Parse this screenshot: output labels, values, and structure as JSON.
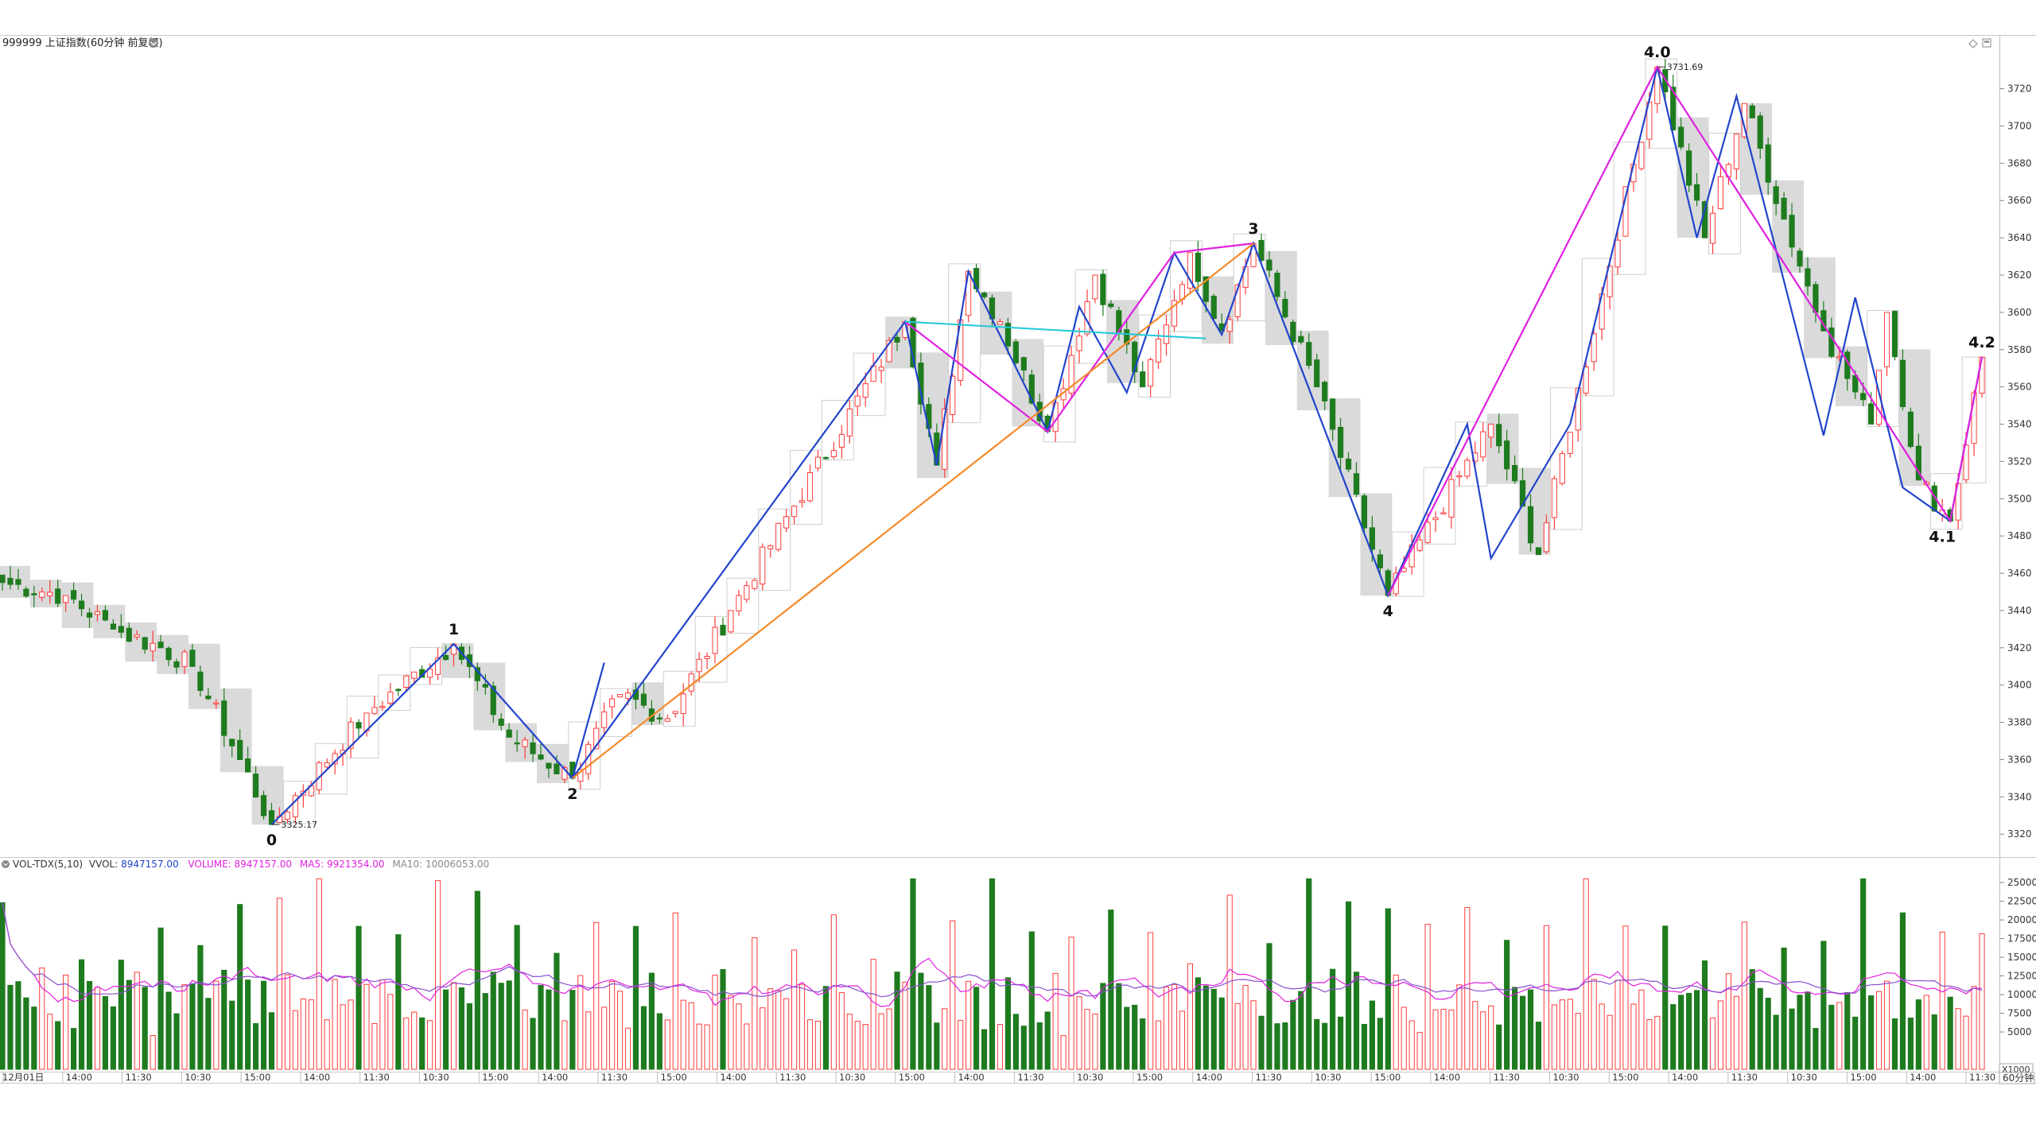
{
  "header": {
    "title": "999999 上证指数(60分钟 前复权)",
    "title_icon": "circle-menu-icon",
    "corner_icons": [
      "diamond-icon",
      "square-icon"
    ]
  },
  "colors": {
    "up": "#ff3b3b",
    "down": "#1e7b1e",
    "blue_wave": "#2244cc",
    "magenta_wave": "#e020e0",
    "orange_line": "#f58a2a",
    "cyan_line": "#20c8d8",
    "gray_box": "#d4d4d4"
  },
  "chart_data": [
    {
      "type": "candlestick",
      "ylim": [
        3312,
        3742
      ],
      "y_ticks": [
        3320,
        3340,
        3360,
        3380,
        3400,
        3420,
        3440,
        3460,
        3480,
        3500,
        3520,
        3540,
        3560,
        3580,
        3600,
        3620,
        3640,
        3660,
        3680,
        3700,
        3720
      ],
      "x_tick_labels": [
        "12月01日",
        "14:00",
        "11:30",
        "10:30",
        "15:00",
        "14:00",
        "11:30",
        "10:30",
        "15:00",
        "14:00",
        "11:30",
        "15:00",
        "14:00",
        "11:30",
        "10:30",
        "15:00",
        "14:00",
        "11:30",
        "10:30",
        "15:00",
        "14:00",
        "11:30",
        "10:30",
        "15:00",
        "14:00",
        "11:30",
        "10:30",
        "15:00",
        "14:00",
        "11:30",
        "10:30",
        "15:00",
        "14:00",
        "11:30"
      ],
      "x_unit_label": "60分钟",
      "candles_count": 251,
      "wave_points": [
        {
          "label": "0",
          "idx": 34,
          "value": 3325.17,
          "annotation": "3325.17"
        },
        {
          "label": "1",
          "idx": 57,
          "value": 3422
        },
        {
          "label": "2",
          "idx": 72,
          "value": 3350
        },
        {
          "label": "3",
          "idx": 158,
          "value": 3637
        },
        {
          "label": "4",
          "idx": 175,
          "value": 3448
        },
        {
          "label": "4.0",
          "idx": 209,
          "value": 3731.69,
          "annotation": "3731.69"
        },
        {
          "label": "4.1",
          "idx": 245,
          "value": 3488
        },
        {
          "label": "4.2",
          "idx": 250,
          "value": 3576
        }
      ],
      "legend": "none",
      "grid": false
    },
    {
      "type": "bar",
      "title": "VOL-TDX(5,10)",
      "series": [
        {
          "name": "VVOL",
          "value_text": "8947157.00"
        },
        {
          "name": "VOLUME",
          "value_text": "8947157.00"
        },
        {
          "name": "MA5",
          "value_text": "9921354.00"
        },
        {
          "name": "MA10",
          "value_text": "10006053.00"
        }
      ],
      "ylim": [
        0,
        26500
      ],
      "y_ticks": [
        5000,
        7500,
        10000,
        12500,
        15000,
        17500,
        20000,
        22500,
        25000
      ],
      "y_unit_label": "X1000"
    }
  ]
}
